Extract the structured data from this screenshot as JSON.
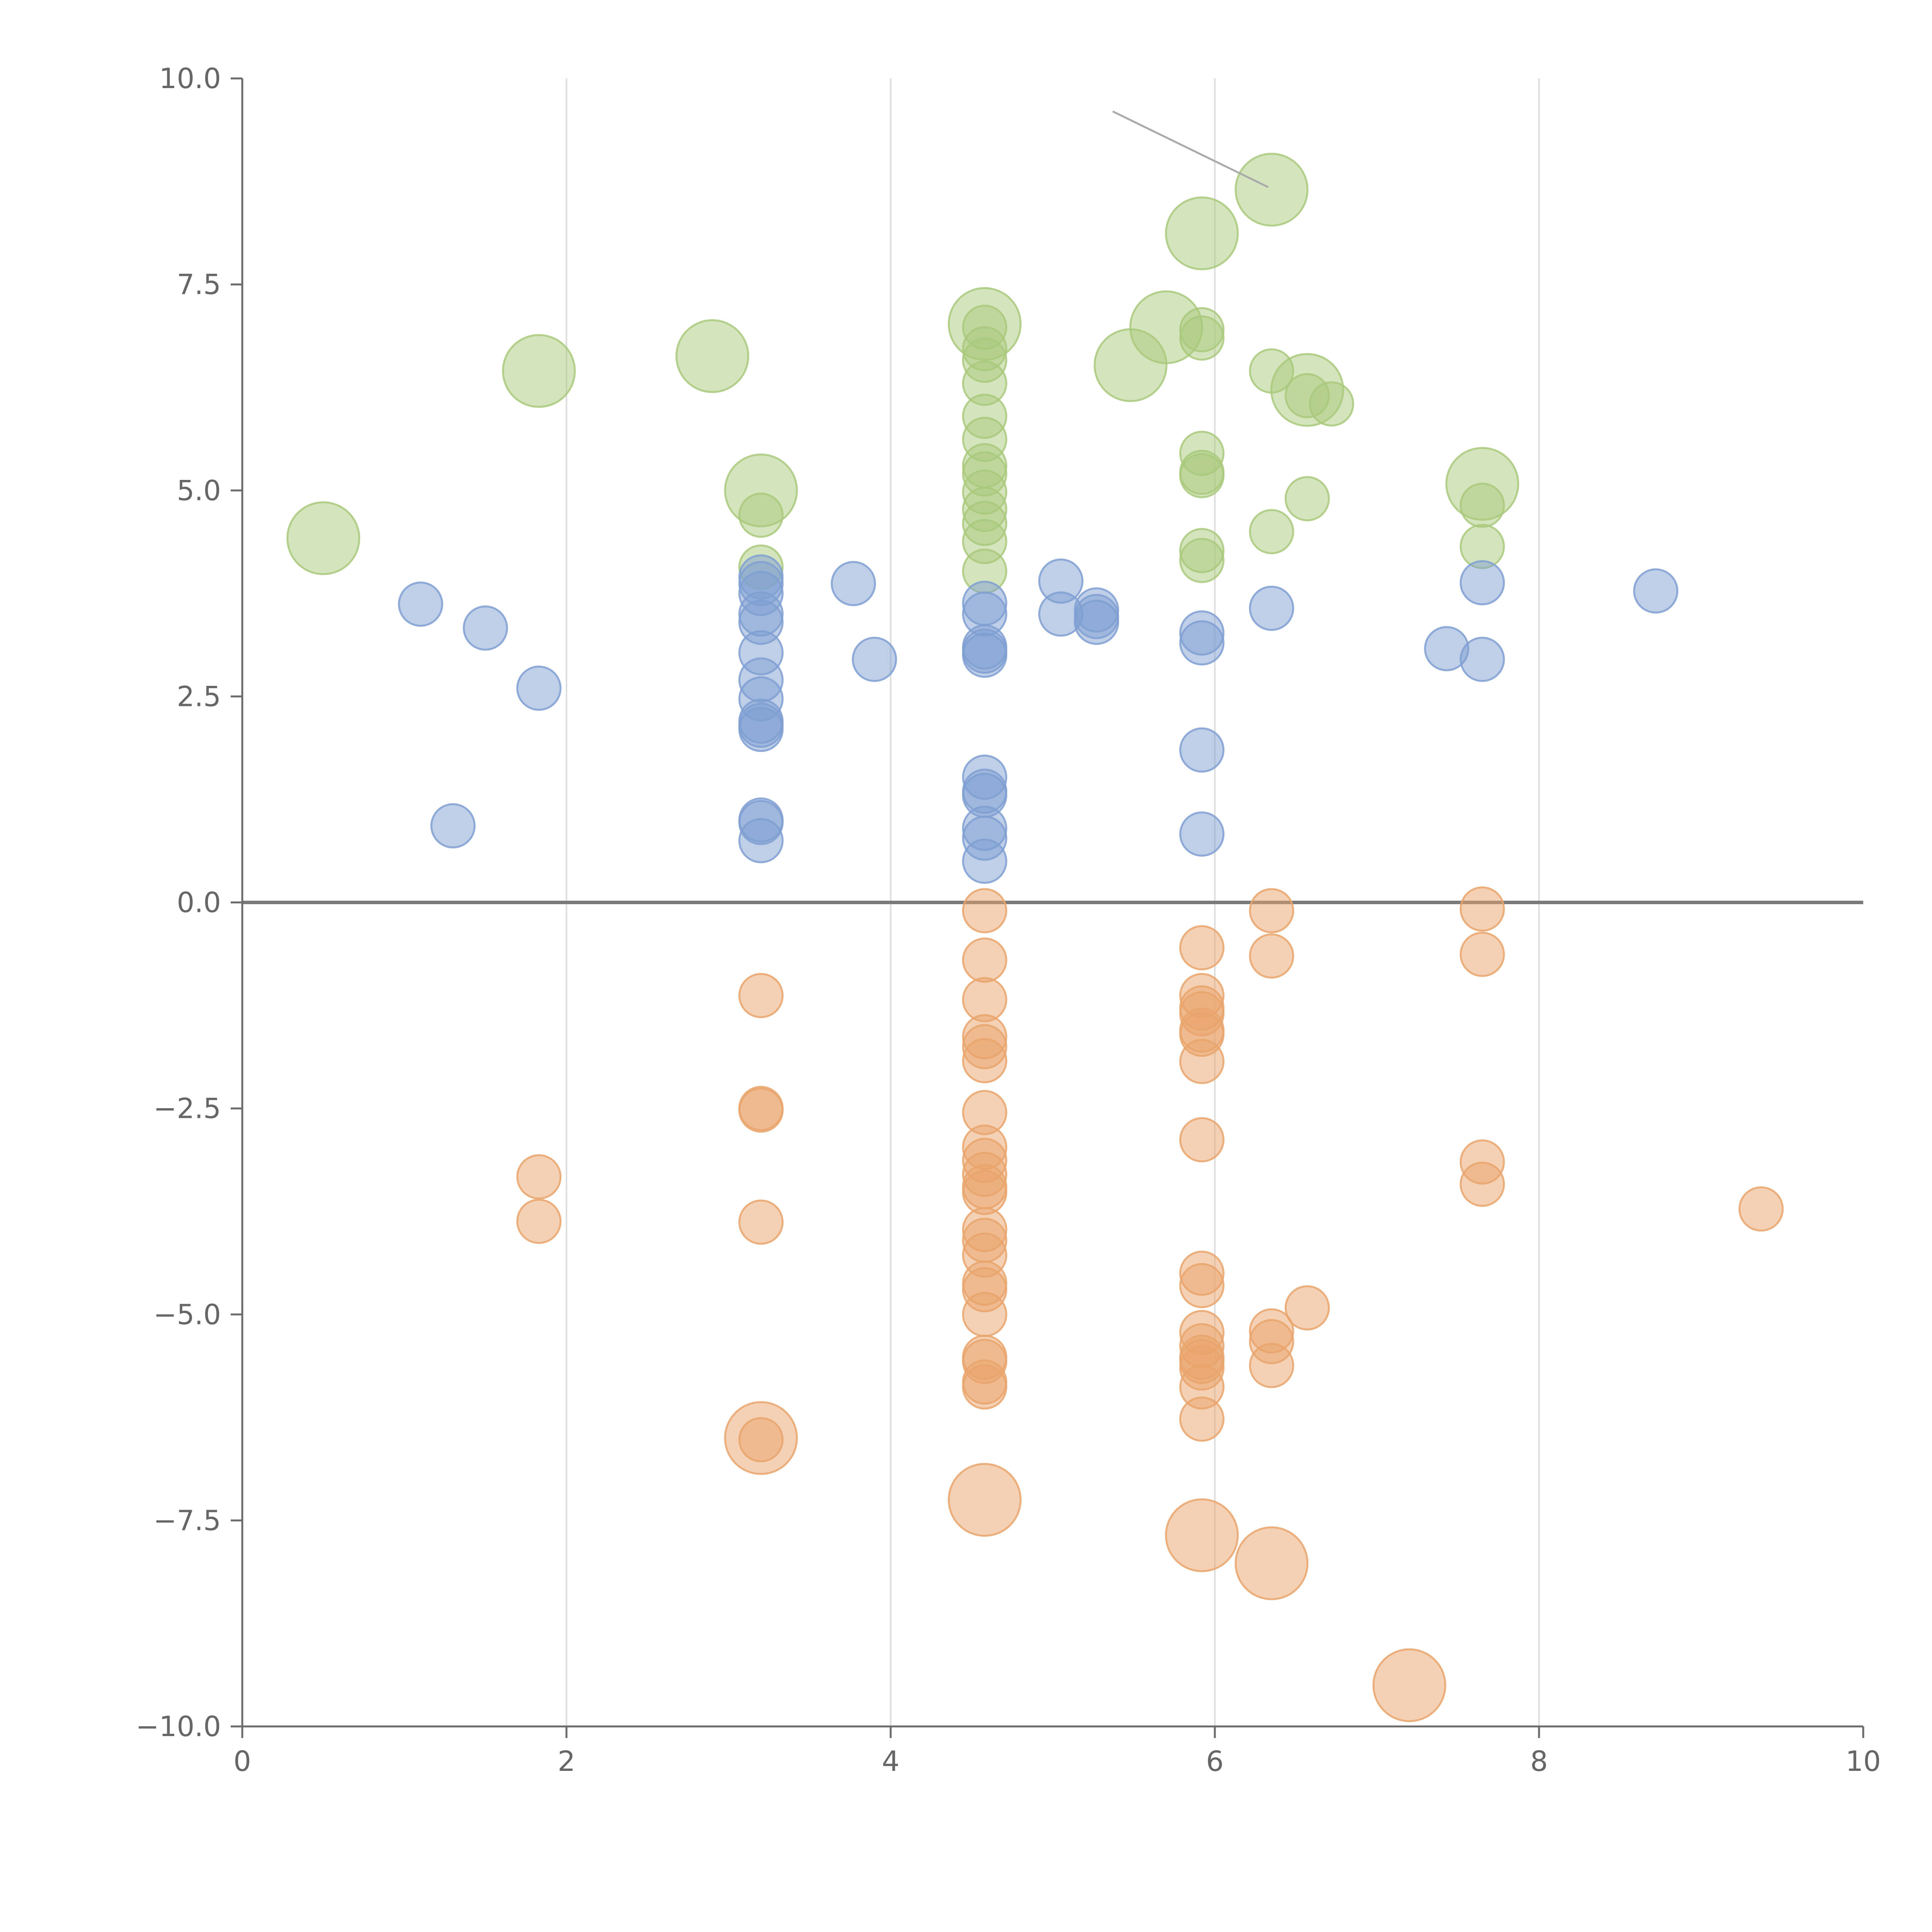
{
  "chart_data": {
    "type": "scatter",
    "title": "",
    "xlabel": "",
    "ylabel": "",
    "xlim": [
      0,
      10
    ],
    "ylim": [
      -10,
      10
    ],
    "x_ticks": [
      0,
      2,
      4,
      6,
      8,
      10
    ],
    "x_tick_labels": [
      "0",
      "2",
      "4",
      "6",
      "8",
      "10"
    ],
    "y_ticks": [
      -10,
      -7.5,
      -5,
      -2.5,
      0,
      2.5,
      5,
      7.5,
      10
    ],
    "y_tick_labels": [
      "−10.0",
      "−7.5",
      "−5.0",
      "−2.5",
      "0.0",
      "2.5",
      "5.0",
      "7.5",
      "10.0"
    ],
    "vertical_gridlines_at": [
      2,
      4,
      6,
      8
    ],
    "baseline_y": 0,
    "colors": {
      "green": "#a9c97c",
      "blue": "#7f9fd2",
      "orange": "#e9a46c",
      "axis": "#6b6b6b",
      "grid": "#dddddd",
      "baseline": "#7a7a7a"
    },
    "series": [
      {
        "name": "green",
        "points": [
          [
            0.5,
            4.42,
            2
          ],
          [
            1.83,
            6.45,
            2
          ],
          [
            2.9,
            6.63,
            2
          ],
          [
            3.2,
            5.0,
            2
          ],
          [
            3.2,
            4.7,
            1
          ],
          [
            3.2,
            4.07,
            1
          ],
          [
            4.58,
            7.02,
            2
          ],
          [
            4.58,
            6.98,
            1
          ],
          [
            4.58,
            6.72,
            1
          ],
          [
            4.58,
            6.58,
            1
          ],
          [
            4.58,
            6.3,
            1
          ],
          [
            4.58,
            5.9,
            1
          ],
          [
            4.58,
            5.62,
            1
          ],
          [
            4.58,
            5.3,
            1
          ],
          [
            4.58,
            5.2,
            1
          ],
          [
            4.58,
            4.98,
            1
          ],
          [
            4.58,
            4.77,
            1
          ],
          [
            4.58,
            4.6,
            1
          ],
          [
            4.58,
            4.38,
            1
          ],
          [
            4.58,
            4.02,
            1
          ],
          [
            5.48,
            6.52,
            2
          ],
          [
            5.7,
            6.98,
            2
          ],
          [
            5.92,
            8.12,
            2
          ],
          [
            5.92,
            6.95,
            1
          ],
          [
            5.92,
            6.85,
            1
          ],
          [
            5.92,
            5.45,
            1
          ],
          [
            5.92,
            5.22,
            1
          ],
          [
            5.92,
            5.18,
            1
          ],
          [
            5.92,
            4.27,
            1
          ],
          [
            5.92,
            4.15,
            1
          ],
          [
            6.35,
            8.65,
            2
          ],
          [
            6.35,
            6.45,
            1
          ],
          [
            6.35,
            4.5,
            1
          ],
          [
            6.57,
            6.22,
            2
          ],
          [
            6.57,
            6.15,
            1
          ],
          [
            6.57,
            4.9,
            1
          ],
          [
            6.72,
            6.05,
            1
          ],
          [
            7.65,
            5.08,
            2
          ],
          [
            7.65,
            4.82,
            1
          ],
          [
            7.65,
            4.32,
            1
          ]
        ]
      },
      {
        "name": "blue",
        "points": [
          [
            1.1,
            3.62,
            1
          ],
          [
            1.3,
            0.93,
            1
          ],
          [
            1.5,
            3.33,
            1
          ],
          [
            1.83,
            2.6,
            1
          ],
          [
            3.2,
            3.95,
            1
          ],
          [
            3.2,
            3.87,
            1
          ],
          [
            3.2,
            3.75,
            1
          ],
          [
            3.2,
            3.5,
            1
          ],
          [
            3.2,
            3.4,
            1
          ],
          [
            3.2,
            3.03,
            1
          ],
          [
            3.2,
            2.7,
            1
          ],
          [
            3.2,
            2.47,
            1
          ],
          [
            3.2,
            2.2,
            1
          ],
          [
            3.2,
            2.15,
            1
          ],
          [
            3.2,
            2.1,
            1
          ],
          [
            3.2,
            1.0,
            1
          ],
          [
            3.2,
            0.97,
            1
          ],
          [
            3.2,
            0.75,
            1
          ],
          [
            3.77,
            3.87,
            1
          ],
          [
            3.9,
            2.95,
            1
          ],
          [
            4.58,
            3.63,
            1
          ],
          [
            4.58,
            3.5,
            1
          ],
          [
            4.58,
            3.1,
            1
          ],
          [
            4.58,
            3.05,
            1
          ],
          [
            4.58,
            3.0,
            1
          ],
          [
            4.58,
            1.52,
            1
          ],
          [
            4.58,
            1.35,
            1
          ],
          [
            4.58,
            1.3,
            1
          ],
          [
            4.58,
            0.9,
            1
          ],
          [
            4.58,
            0.78,
            1
          ],
          [
            4.58,
            0.5,
            1
          ],
          [
            5.05,
            3.9,
            1
          ],
          [
            5.05,
            3.5,
            1
          ],
          [
            5.27,
            3.55,
            1
          ],
          [
            5.27,
            3.47,
            1
          ],
          [
            5.27,
            3.4,
            1
          ],
          [
            5.92,
            3.27,
            1
          ],
          [
            5.92,
            3.15,
            1
          ],
          [
            5.92,
            1.85,
            1
          ],
          [
            5.92,
            0.83,
            1
          ],
          [
            6.35,
            3.57,
            1
          ],
          [
            7.43,
            3.08,
            1
          ],
          [
            7.65,
            3.88,
            1
          ],
          [
            7.65,
            2.95,
            1
          ],
          [
            8.72,
            3.78,
            1
          ]
        ]
      },
      {
        "name": "orange",
        "points": [
          [
            1.83,
            -3.33,
            1
          ],
          [
            1.83,
            -3.87,
            1
          ],
          [
            3.2,
            -1.13,
            1
          ],
          [
            3.2,
            -2.5,
            1
          ],
          [
            3.2,
            -2.52,
            1
          ],
          [
            3.2,
            -3.88,
            1
          ],
          [
            3.2,
            -6.5,
            2
          ],
          [
            3.2,
            -6.52,
            1
          ],
          [
            4.58,
            -0.1,
            1
          ],
          [
            4.58,
            -0.7,
            1
          ],
          [
            4.58,
            -1.18,
            1
          ],
          [
            4.58,
            -1.63,
            1
          ],
          [
            4.58,
            -1.75,
            1
          ],
          [
            4.58,
            -1.92,
            1
          ],
          [
            4.58,
            -2.55,
            1
          ],
          [
            4.58,
            -2.97,
            1
          ],
          [
            4.58,
            -3.13,
            1
          ],
          [
            4.58,
            -3.3,
            1
          ],
          [
            4.58,
            -3.45,
            1
          ],
          [
            4.58,
            -3.52,
            1
          ],
          [
            4.58,
            -3.97,
            1
          ],
          [
            4.58,
            -4.1,
            1
          ],
          [
            4.58,
            -4.28,
            1
          ],
          [
            4.58,
            -4.62,
            1
          ],
          [
            4.58,
            -4.7,
            1
          ],
          [
            4.58,
            -5.0,
            1
          ],
          [
            4.58,
            -5.52,
            1
          ],
          [
            4.58,
            -5.57,
            1
          ],
          [
            4.58,
            -5.82,
            1
          ],
          [
            4.58,
            -5.88,
            1
          ],
          [
            4.58,
            -7.25,
            2
          ],
          [
            5.92,
            -0.55,
            1
          ],
          [
            5.92,
            -1.13,
            1
          ],
          [
            5.92,
            -1.28,
            1
          ],
          [
            5.92,
            -1.35,
            1
          ],
          [
            5.92,
            -1.55,
            1
          ],
          [
            5.92,
            -1.6,
            1
          ],
          [
            5.92,
            -1.93,
            1
          ],
          [
            5.92,
            -2.88,
            1
          ],
          [
            5.92,
            -4.5,
            1
          ],
          [
            5.92,
            -4.65,
            1
          ],
          [
            5.92,
            -5.22,
            1
          ],
          [
            5.92,
            -5.38,
            1
          ],
          [
            5.92,
            -5.52,
            1
          ],
          [
            5.92,
            -5.57,
            1
          ],
          [
            5.92,
            -5.65,
            1
          ],
          [
            5.92,
            -5.88,
            1
          ],
          [
            5.92,
            -6.27,
            1
          ],
          [
            5.92,
            -7.68,
            2
          ],
          [
            6.35,
            -0.1,
            1
          ],
          [
            6.35,
            -0.65,
            1
          ],
          [
            6.35,
            -5.2,
            1
          ],
          [
            6.35,
            -5.33,
            1
          ],
          [
            6.35,
            -5.62,
            1
          ],
          [
            6.35,
            -8.02,
            2
          ],
          [
            6.57,
            -4.92,
            1
          ],
          [
            7.2,
            -9.5,
            2
          ],
          [
            7.65,
            -0.08,
            1
          ],
          [
            7.65,
            -0.63,
            1
          ],
          [
            7.65,
            -3.15,
            1
          ],
          [
            7.65,
            -3.42,
            1
          ],
          [
            9.37,
            -3.72,
            1
          ]
        ]
      }
    ]
  }
}
